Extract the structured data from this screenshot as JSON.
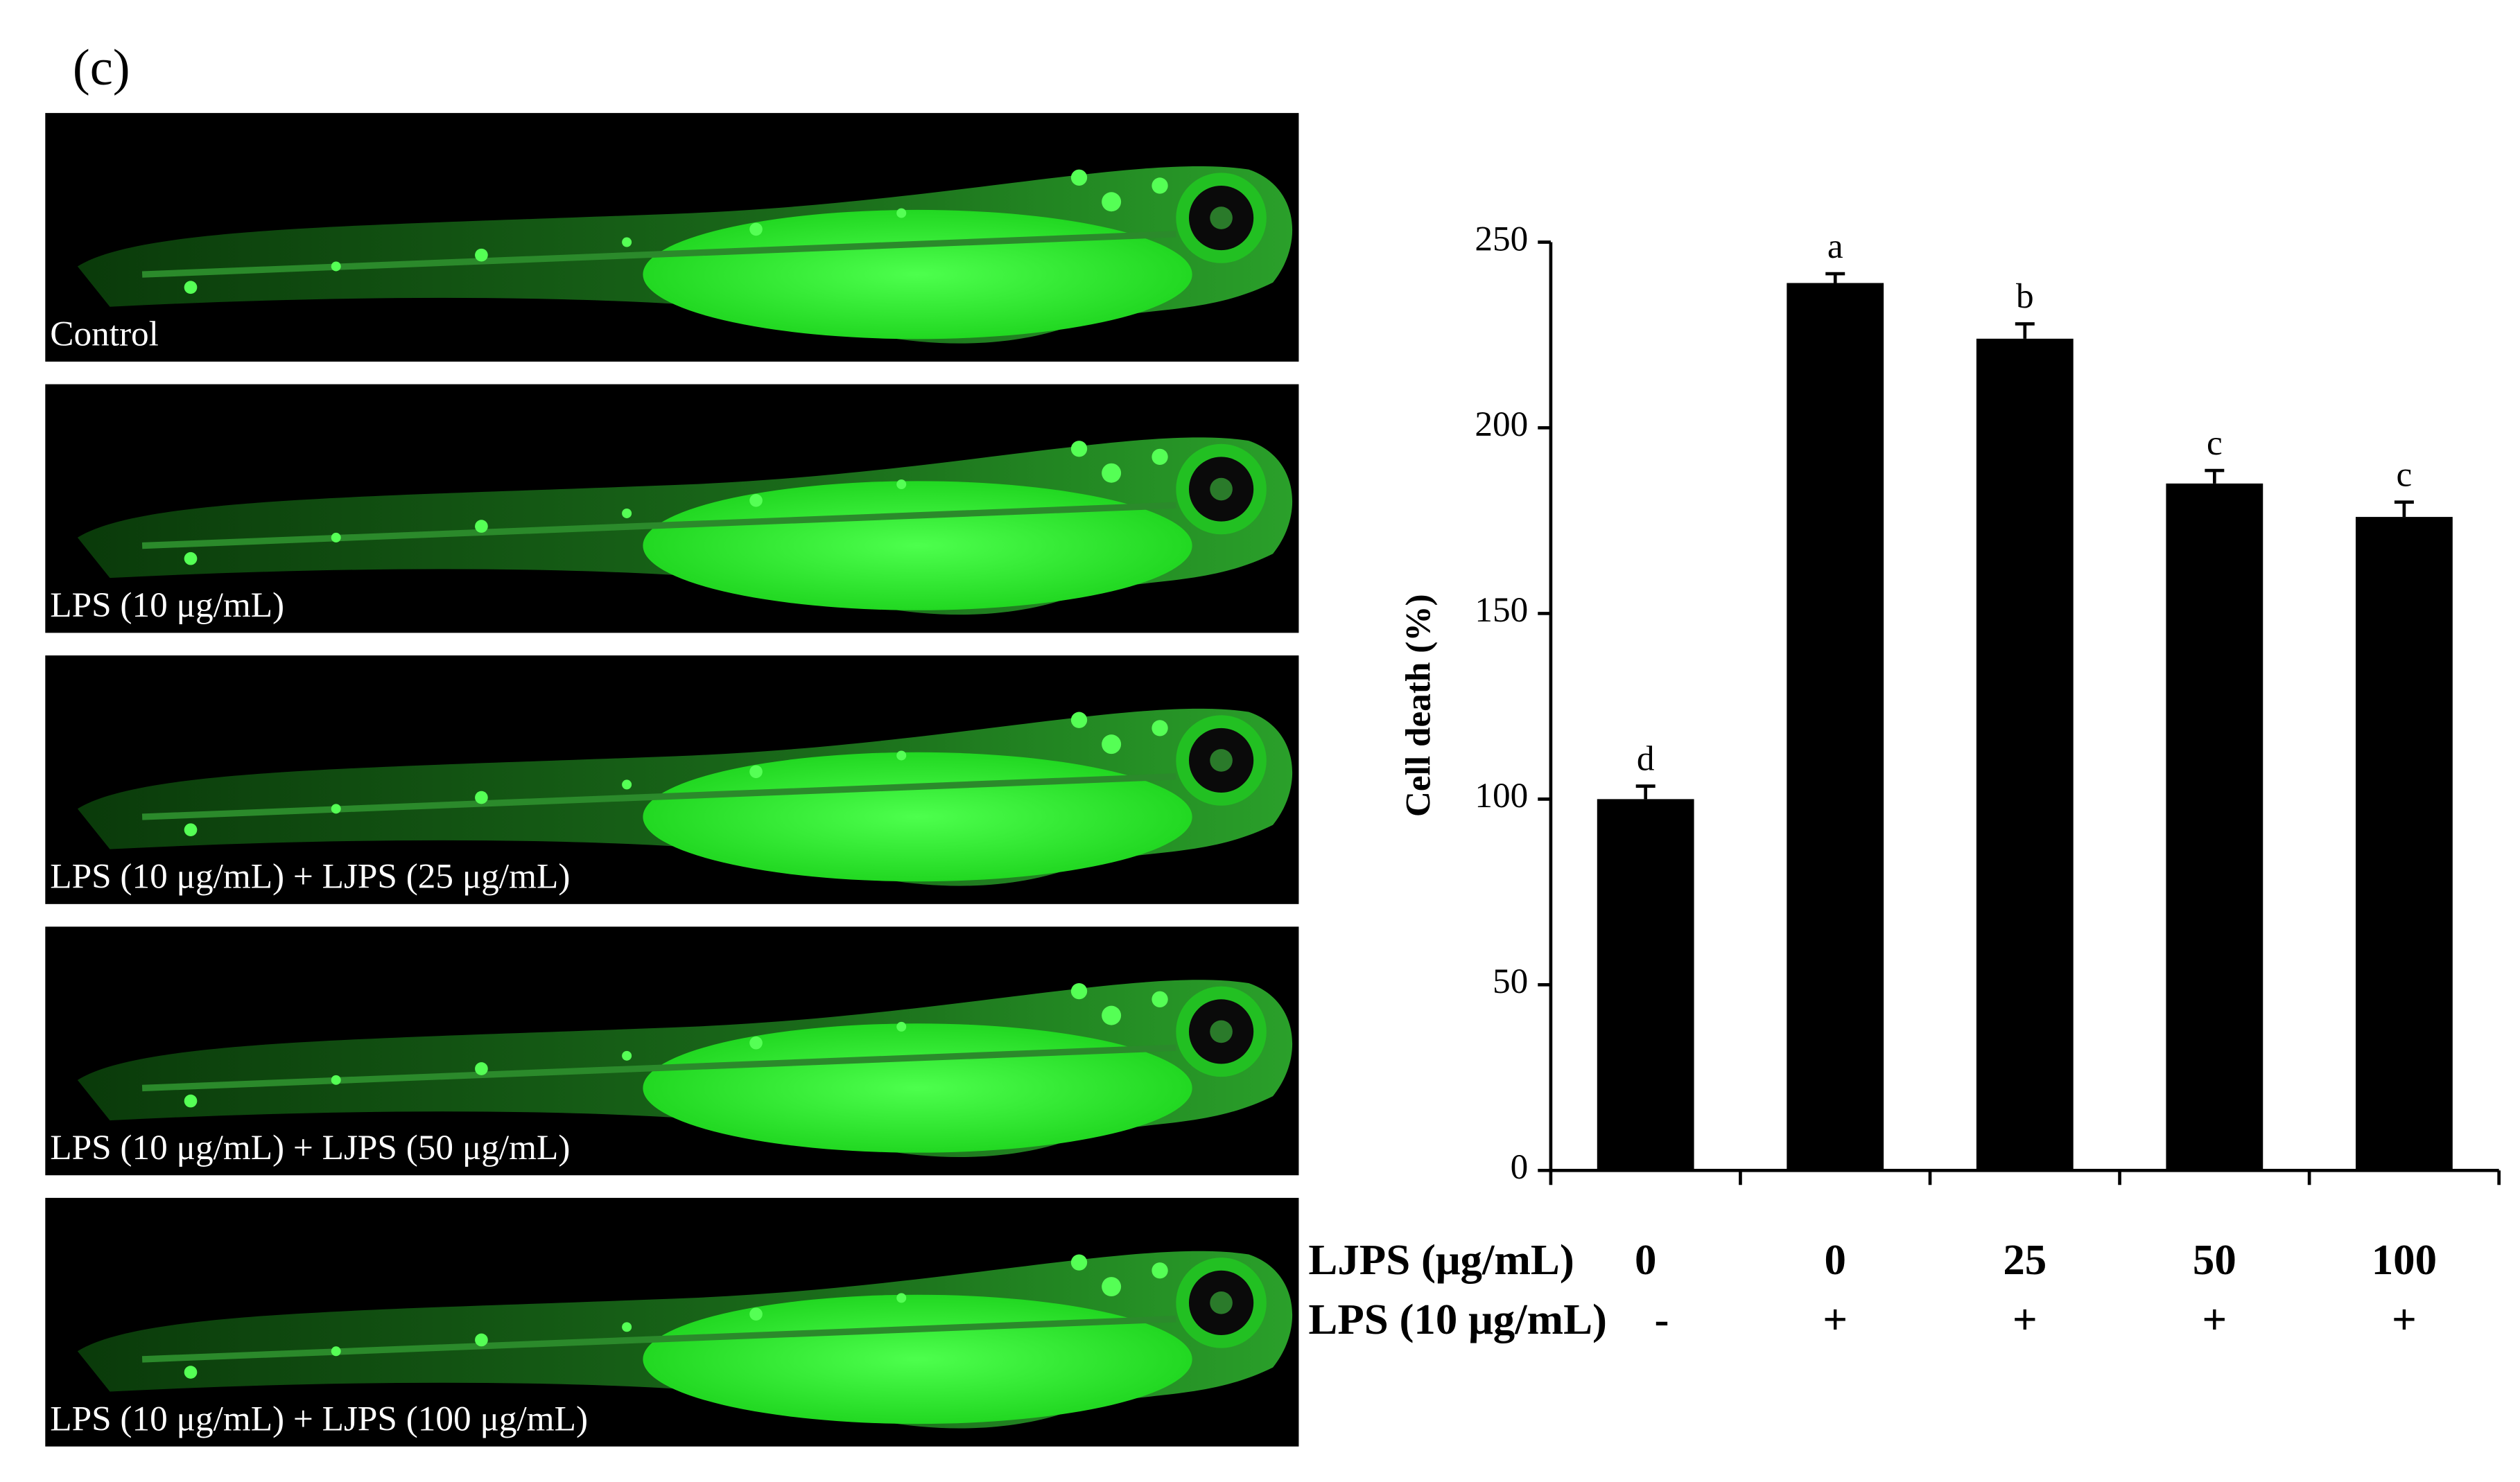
{
  "panel_label": "(c)",
  "images": [
    {
      "caption": "Control"
    },
    {
      "caption": "LPS (10 μg/mL)"
    },
    {
      "caption": "LPS (10 μg/mL) + LJPS (25 μg/mL)"
    },
    {
      "caption": "LPS (10 μg/mL) + LJPS (50 μg/mL)"
    },
    {
      "caption": "LPS (10 μg/mL) + LJPS (100 μg/mL)"
    }
  ],
  "chart_data": {
    "type": "bar",
    "y_label": "Cell death (%)",
    "row_labels": [
      "LJPS (μg/mL)",
      "LPS (10 μg/mL)"
    ],
    "categories": [
      "0",
      "0",
      "25",
      "50",
      "100"
    ],
    "lps_row": [
      "-",
      "+",
      "+",
      "+",
      "+"
    ],
    "values": [
      100,
      239,
      224,
      185,
      176
    ],
    "errors": [
      3.5,
      2.5,
      4,
      3.5,
      4
    ],
    "annotations": [
      "d",
      "a",
      "b",
      "c",
      "c"
    ],
    "color": "#000000",
    "ylim": [
      0,
      250
    ],
    "yticks": [
      0,
      50,
      100,
      150,
      200,
      250
    ]
  }
}
